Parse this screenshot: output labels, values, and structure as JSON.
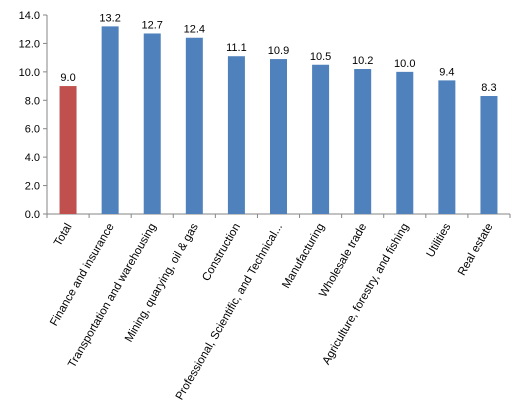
{
  "chart_data": {
    "type": "bar",
    "categories": [
      "Total",
      "Finance and insurance",
      "Transportation and warehousing",
      "Mining, quarying, oil & gas",
      "Construction",
      "Professional, Scientific, and Technical...",
      "Manufacturing",
      "Wholesale trade",
      "Agriculture, forestry, and fishing",
      "Utilities",
      "Real estate"
    ],
    "values": [
      9.0,
      13.2,
      12.7,
      12.4,
      11.1,
      10.9,
      10.5,
      10.2,
      10.0,
      9.4,
      8.3
    ],
    "data_labels": [
      "9.0",
      "13.2",
      "12.7",
      "12.4",
      "11.1",
      "10.9",
      "10.5",
      "10.2",
      "10.0",
      "9.4",
      "8.3"
    ],
    "title": "",
    "xlabel": "",
    "ylabel": "",
    "ylim": [
      0,
      14
    ],
    "yticks": [
      "0.0",
      "2.0",
      "4.0",
      "6.0",
      "8.0",
      "10.0",
      "12.0",
      "14.0"
    ],
    "grid": false,
    "legend": "none",
    "colors": {
      "highlight": "#c0504d",
      "bar": "#4f81bd",
      "axis": "#868686"
    },
    "highlight_index": 0
  }
}
